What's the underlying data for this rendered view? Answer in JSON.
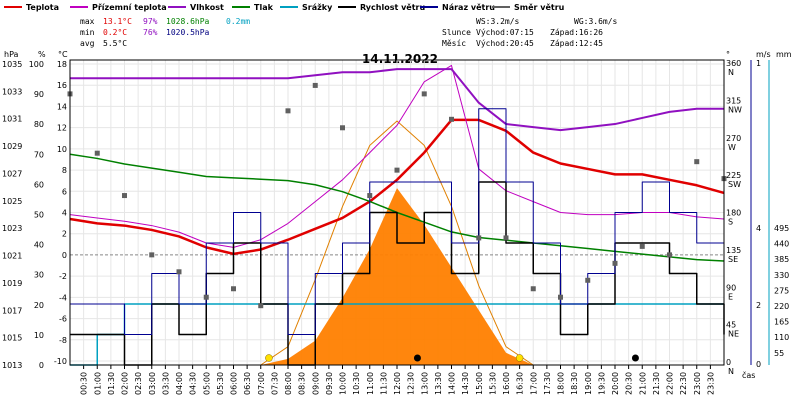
{
  "title": "14.11.2022",
  "legend": [
    {
      "label": "Teplota",
      "color": "#e00000"
    },
    {
      "label": "Přízemní teplota",
      "color": "#c000c0"
    },
    {
      "label": "Vlhkost",
      "color": "#9010c0"
    },
    {
      "label": "Tlak",
      "color": "#008000"
    },
    {
      "label": "Srážky",
      "color": "#00a0c0"
    },
    {
      "label": "Rychlost větru",
      "color": "#000000"
    },
    {
      "label": "Náraz větru",
      "color": "#000090"
    },
    {
      "label": "Směr větru",
      "color": "#606060"
    }
  ],
  "stats": {
    "max": {
      "label": "max",
      "temp": "13.1°C",
      "hum": "97%",
      "press": "1028.6hPa",
      "rain": "0.2mm"
    },
    "min": {
      "label": "min",
      "temp": "0.2°C",
      "hum": "76%",
      "press": "1020.5hPa"
    },
    "avg": {
      "label": "avg",
      "temp": "5.5°C"
    }
  },
  "info": {
    "ws": "WS:3.2m/s",
    "wg": "WG:3.6m/s",
    "sun": "Slunce",
    "sun_rise": "Východ:07:15",
    "sun_set": "Západ:16:26",
    "moon": "Měsíc",
    "moon_rise": "Východ:20:45",
    "moon_set": "Západ:12:45"
  },
  "axes": {
    "hpa_label": "hPa",
    "pct_label": "%",
    "c_label": "°C",
    "deg_label": "°",
    "ms_label": "m/s",
    "mm_label": "mm",
    "x_label": "čas",
    "hpa_ticks": [
      "1035",
      "1033",
      "1031",
      "1029",
      "1027",
      "1025",
      "1023",
      "1021",
      "1019",
      "1017",
      "1015",
      "1013"
    ],
    "pct_ticks": [
      "100",
      "90",
      "80",
      "70",
      "60",
      "50",
      "40",
      "30",
      "20",
      "10",
      "0"
    ],
    "c_ticks": [
      "18",
      "16",
      "14",
      "12",
      "10",
      "8",
      "6",
      "4",
      "2",
      "0",
      "-2",
      "-4",
      "-6",
      "-8",
      "-10"
    ],
    "dir_ticks": [
      "360 N",
      "315 NW",
      "270 W",
      "225 SW",
      "180 S",
      "135 SE",
      "90 E",
      "45 NE",
      "0 N"
    ],
    "ms_ticks": [
      "1",
      "4",
      "2",
      "0"
    ],
    "mm_ticks": [
      "495",
      "440",
      "385",
      "330",
      "275",
      "220",
      "165",
      "110",
      "55"
    ],
    "x_ticks": [
      "00:30",
      "01:00",
      "01:30",
      "02:00",
      "02:30",
      "03:00",
      "03:30",
      "04:00",
      "04:30",
      "05:00",
      "05:30",
      "06:00",
      "06:30",
      "07:00",
      "07:30",
      "08:00",
      "08:30",
      "09:00",
      "09:30",
      "10:00",
      "10:30",
      "11:00",
      "11:30",
      "12:00",
      "12:30",
      "13:00",
      "13:30",
      "14:00",
      "14:30",
      "15:00",
      "15:30",
      "16:00",
      "16:30",
      "17:00",
      "17:30",
      "18:00",
      "18:30",
      "19:00",
      "19:30",
      "20:00",
      "20:30",
      "21:00",
      "21:30",
      "22:00",
      "22:30",
      "23:00",
      "23:30"
    ]
  },
  "chart_data": {
    "type": "line",
    "x_hours": [
      0,
      1,
      2,
      3,
      4,
      5,
      6,
      7,
      8,
      9,
      10,
      11,
      12,
      13,
      14,
      15,
      16,
      17,
      18,
      19,
      20,
      21,
      22,
      23,
      24
    ],
    "series": [
      {
        "name": "Teplota",
        "unit": "°C",
        "color": "#e00000",
        "values": [
          3.4,
          3,
          2.8,
          2.4,
          1.8,
          0.8,
          0.2,
          0.6,
          1.5,
          2.5,
          3.5,
          5,
          7,
          9.5,
          12.5,
          12.5,
          11.5,
          9.5,
          8.5,
          8,
          7.5,
          7.5,
          7,
          6.5,
          5.8
        ]
      },
      {
        "name": "Přízemní teplota",
        "unit": "°C",
        "color": "#c000c0",
        "values": [
          3.8,
          3.5,
          3.2,
          2.8,
          2.2,
          1.2,
          0.8,
          1.5,
          3,
          5,
          7,
          9.5,
          12,
          16,
          17.5,
          8,
          6,
          5,
          4,
          3.8,
          3.8,
          4,
          4,
          3.6,
          3.4
        ]
      },
      {
        "name": "Vlhkost",
        "unit": "%",
        "color": "#9010c0",
        "values": [
          94,
          94,
          94,
          94,
          94,
          94,
          94,
          94,
          94,
          95,
          96,
          96,
          97,
          97,
          97,
          86,
          79,
          78,
          77,
          78,
          79,
          81,
          83,
          84,
          84
        ]
      },
      {
        "name": "Tlak",
        "unit": "hPa",
        "color": "#008000",
        "values": [
          1028.2,
          1027.9,
          1027.5,
          1027.2,
          1026.9,
          1026.6,
          1026.5,
          1026.4,
          1026.3,
          1026,
          1025.5,
          1024.8,
          1024,
          1023.3,
          1022.6,
          1022.2,
          1022,
          1021.8,
          1021.6,
          1021.4,
          1021.2,
          1021,
          1020.8,
          1020.6,
          1020.5
        ]
      },
      {
        "name": "Srážky",
        "unit": "mm",
        "color": "#00a0c0",
        "values": [
          0,
          0.1,
          0.2,
          0.2,
          0.2,
          0.2,
          0.2,
          0.2,
          0.2,
          0.2,
          0.2,
          0.2,
          0.2,
          0.2,
          0.2,
          0.2,
          0.2,
          0.2,
          0.2,
          0.2,
          0.2,
          0.2,
          0.2,
          0.2,
          0.2
        ]
      },
      {
        "name": "Rychlost větru",
        "unit": "m/s",
        "color": "#000000",
        "values": [
          0.5,
          0.5,
          0,
          1,
          0.5,
          1.5,
          2,
          1,
          0,
          1,
          1.5,
          2.5,
          2,
          2.5,
          1.5,
          3,
          2,
          1.5,
          0.5,
          1,
          2,
          2,
          1.5,
          1,
          0.5
        ]
      },
      {
        "name": "Náraz větru",
        "unit": "m/s",
        "color": "#000090",
        "values": [
          1,
          1,
          0.5,
          1.5,
          1,
          2,
          2.5,
          2,
          0.5,
          1.5,
          2,
          3,
          3,
          3,
          2,
          4.2,
          3,
          2,
          1,
          1.5,
          2.5,
          3,
          2.5,
          2,
          1
        ]
      },
      {
        "name": "Směr větru",
        "unit": "°",
        "color": "#606060",
        "values": [
          320,
          250,
          200,
          130,
          110,
          80,
          90,
          70,
          300,
          330,
          280,
          200,
          230,
          320,
          290,
          150,
          150,
          90,
          80,
          100,
          120,
          140,
          130,
          240,
          220
        ]
      }
    ],
    "solar_curve": {
      "color": "#e08000",
      "values": [
        0,
        0,
        0,
        0,
        0,
        0,
        0,
        0,
        30,
        140,
        260,
        360,
        400,
        360,
        260,
        130,
        30,
        0,
        0,
        0,
        0,
        0,
        0,
        0,
        0
      ]
    },
    "solar_fill": {
      "color": "#ff8000",
      "values": [
        0,
        0,
        0,
        0,
        0,
        0,
        0,
        0,
        10,
        40,
        110,
        190,
        290,
        230,
        160,
        90,
        20,
        0,
        0,
        0,
        0,
        0,
        0,
        0,
        0
      ]
    },
    "xlim": [
      0,
      24
    ],
    "ylim_temp": [
      -10,
      18
    ],
    "ylim_hum": [
      0,
      100
    ],
    "ylim_press": [
      1013,
      1035
    ],
    "ylim_wind": [
      0,
      5
    ],
    "ylim_dir": [
      0,
      360
    ],
    "ylim_solar": [
      0,
      500
    ]
  }
}
